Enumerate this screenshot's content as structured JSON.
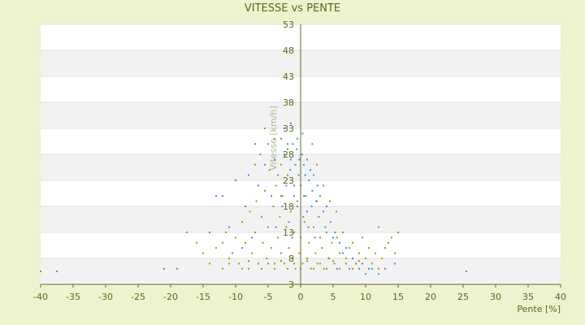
{
  "chart_data": {
    "type": "scatter",
    "title": "VITESSE vs PENTE",
    "xlabel": "Pente [%]",
    "ylabel": "Vitesse [km/h]",
    "xlim": [
      -40,
      40
    ],
    "ylim": [
      3,
      53
    ],
    "x_ticks": [
      "-40",
      "-35",
      "-30",
      "-25",
      "-20",
      "-15",
      "-10",
      "-5",
      "0",
      "5",
      "10",
      "15",
      "20",
      "25",
      "30",
      "35",
      "40"
    ],
    "y_ticks": [
      "3",
      "8",
      "13",
      "18",
      "23",
      "28",
      "33",
      "38",
      "43",
      "48",
      "53"
    ],
    "grid": "horizontal alternating bands",
    "series": [
      {
        "color": "#3d8fdc",
        "points": [
          [
            -40,
            5.5
          ],
          [
            -37.5,
            5.5
          ],
          [
            -21,
            6
          ],
          [
            -19,
            6
          ],
          [
            -15,
            9
          ],
          [
            -14,
            13
          ],
          [
            -13,
            20
          ],
          [
            -12,
            20
          ],
          [
            -11,
            14
          ],
          [
            -10,
            23
          ],
          [
            -9,
            10
          ],
          [
            -8.5,
            18
          ],
          [
            -8,
            24
          ],
          [
            -7.5,
            12
          ],
          [
            -7,
            30
          ],
          [
            -6.5,
            22
          ],
          [
            -6,
            16
          ],
          [
            -5.5,
            26
          ],
          [
            -5,
            30
          ],
          [
            -4.5,
            20
          ],
          [
            -4,
            27
          ],
          [
            -3.8,
            14
          ],
          [
            -3.5,
            24
          ],
          [
            -3,
            31
          ],
          [
            -2.8,
            18
          ],
          [
            -2.5,
            28
          ],
          [
            -2.2,
            22
          ],
          [
            -2,
            29
          ],
          [
            -1.8,
            15
          ],
          [
            -1.6,
            25
          ],
          [
            -1.5,
            27
          ],
          [
            -1.3,
            12
          ],
          [
            -1.2,
            30
          ],
          [
            -1,
            22
          ],
          [
            -0.8,
            26
          ],
          [
            -0.6,
            29
          ],
          [
            -0.5,
            18
          ],
          [
            -0.3,
            24
          ],
          [
            -0.2,
            27
          ],
          [
            0,
            22
          ],
          [
            0.2,
            28
          ],
          [
            0.4,
            16
          ],
          [
            0.5,
            26
          ],
          [
            0.7,
            24
          ],
          [
            0.8,
            20
          ],
          [
            1,
            27
          ],
          [
            1.2,
            14
          ],
          [
            1.3,
            23
          ],
          [
            1.5,
            25
          ],
          [
            1.7,
            18
          ],
          [
            1.8,
            21
          ],
          [
            2,
            24
          ],
          [
            2.2,
            12
          ],
          [
            2.4,
            19
          ],
          [
            2.6,
            22
          ],
          [
            2.8,
            16
          ],
          [
            3,
            20
          ],
          [
            3.3,
            10
          ],
          [
            3.5,
            17
          ],
          [
            3.8,
            14
          ],
          [
            4,
            18
          ],
          [
            4.3,
            8
          ],
          [
            4.6,
            15
          ],
          [
            5,
            12
          ],
          [
            5.3,
            13
          ],
          [
            5.6,
            6
          ],
          [
            6,
            11
          ],
          [
            6.5,
            9
          ],
          [
            7,
            10
          ],
          [
            7.5,
            6
          ],
          [
            8,
            8
          ],
          [
            8.5,
            7
          ],
          [
            9,
            6
          ],
          [
            9.5,
            7
          ],
          [
            10,
            5
          ],
          [
            10.5,
            6
          ],
          [
            11,
            6
          ],
          [
            12,
            5
          ],
          [
            13,
            6
          ],
          [
            14.5,
            7
          ],
          [
            25.5,
            5.5
          ],
          [
            -2.5,
            33
          ],
          [
            -1.5,
            34
          ],
          [
            -0.5,
            31
          ],
          [
            0.3,
            32
          ],
          [
            1.8,
            30
          ],
          [
            -3,
            20
          ],
          [
            -1,
            20
          ],
          [
            0.5,
            20
          ],
          [
            2.5,
            19
          ],
          [
            1,
            17
          ]
        ]
      },
      {
        "color": "#9a9a12",
        "points": [
          [
            -17.5,
            13
          ],
          [
            -16,
            11
          ],
          [
            -15,
            9
          ],
          [
            -14,
            7
          ],
          [
            -13,
            10
          ],
          [
            -12,
            11
          ],
          [
            -11.5,
            13
          ],
          [
            -11,
            8
          ],
          [
            -10.5,
            9
          ],
          [
            -10,
            12
          ],
          [
            -9.5,
            7
          ],
          [
            -9,
            15
          ],
          [
            -8.5,
            11
          ],
          [
            -8,
            6
          ],
          [
            -7.8,
            17
          ],
          [
            -7.5,
            9
          ],
          [
            -7,
            13
          ],
          [
            -6.8,
            19
          ],
          [
            -6.5,
            7
          ],
          [
            -6,
            16
          ],
          [
            -5.8,
            11
          ],
          [
            -5.5,
            21
          ],
          [
            -5.2,
            8
          ],
          [
            -5,
            14
          ],
          [
            -4.8,
            25
          ],
          [
            -4.5,
            10
          ],
          [
            -4.2,
            18
          ],
          [
            -4,
            7
          ],
          [
            -3.8,
            22
          ],
          [
            -3.5,
            12
          ],
          [
            -3.2,
            16
          ],
          [
            -3,
            9
          ],
          [
            -2.8,
            20
          ],
          [
            -2.5,
            7
          ],
          [
            -2.2,
            14
          ],
          [
            -2,
            24
          ],
          [
            -1.8,
            10
          ],
          [
            -1.5,
            17
          ],
          [
            -1.2,
            8
          ],
          [
            -1,
            13
          ],
          [
            -0.8,
            6
          ],
          [
            -0.5,
            19
          ],
          [
            -0.2,
            9
          ],
          [
            0,
            12
          ],
          [
            0.3,
            7
          ],
          [
            0.6,
            15
          ],
          [
            1,
            8
          ],
          [
            1.3,
            11
          ],
          [
            1.6,
            6
          ],
          [
            2,
            14
          ],
          [
            2.3,
            9
          ],
          [
            2.6,
            7
          ],
          [
            3,
            12
          ],
          [
            3.3,
            10
          ],
          [
            3.6,
            6
          ],
          [
            4,
            13
          ],
          [
            4.4,
            8
          ],
          [
            4.8,
            11
          ],
          [
            5.2,
            7
          ],
          [
            5.6,
            12
          ],
          [
            6,
            9
          ],
          [
            6.5,
            13
          ],
          [
            7,
            8
          ],
          [
            7.5,
            10
          ],
          [
            8,
            11
          ],
          [
            8.5,
            7
          ],
          [
            9,
            9
          ],
          [
            9.5,
            12
          ],
          [
            10,
            8
          ],
          [
            10.5,
            10
          ],
          [
            11,
            7
          ],
          [
            11.5,
            9
          ],
          [
            12,
            6
          ],
          [
            12.5,
            8
          ],
          [
            13,
            10
          ],
          [
            13.5,
            11
          ],
          [
            14,
            12
          ],
          [
            15,
            13
          ],
          [
            14.5,
            9
          ],
          [
            12,
            14
          ],
          [
            -12,
            6
          ],
          [
            -9,
            6
          ],
          [
            -6,
            6
          ],
          [
            -4,
            6
          ],
          [
            -2,
            6
          ],
          [
            0,
            6
          ],
          [
            2,
            6
          ],
          [
            4,
            6
          ],
          [
            6,
            6
          ],
          [
            8,
            6
          ],
          [
            -11,
            7
          ],
          [
            -8,
            7.5
          ],
          [
            -5,
            7
          ],
          [
            -3,
            7.5
          ],
          [
            -1,
            7
          ],
          [
            1,
            7.5
          ],
          [
            3,
            7
          ],
          [
            5,
            7.5
          ],
          [
            7,
            7
          ],
          [
            9,
            7.5
          ],
          [
            -5.5,
            33
          ],
          [
            -4,
            31
          ],
          [
            -6.2,
            28
          ],
          [
            -3,
            26
          ],
          [
            -7,
            26
          ],
          [
            -2,
            30
          ],
          [
            2.5,
            26
          ],
          [
            3.5,
            22
          ],
          [
            4.5,
            19
          ],
          [
            5.5,
            17
          ]
        ]
      }
    ]
  }
}
